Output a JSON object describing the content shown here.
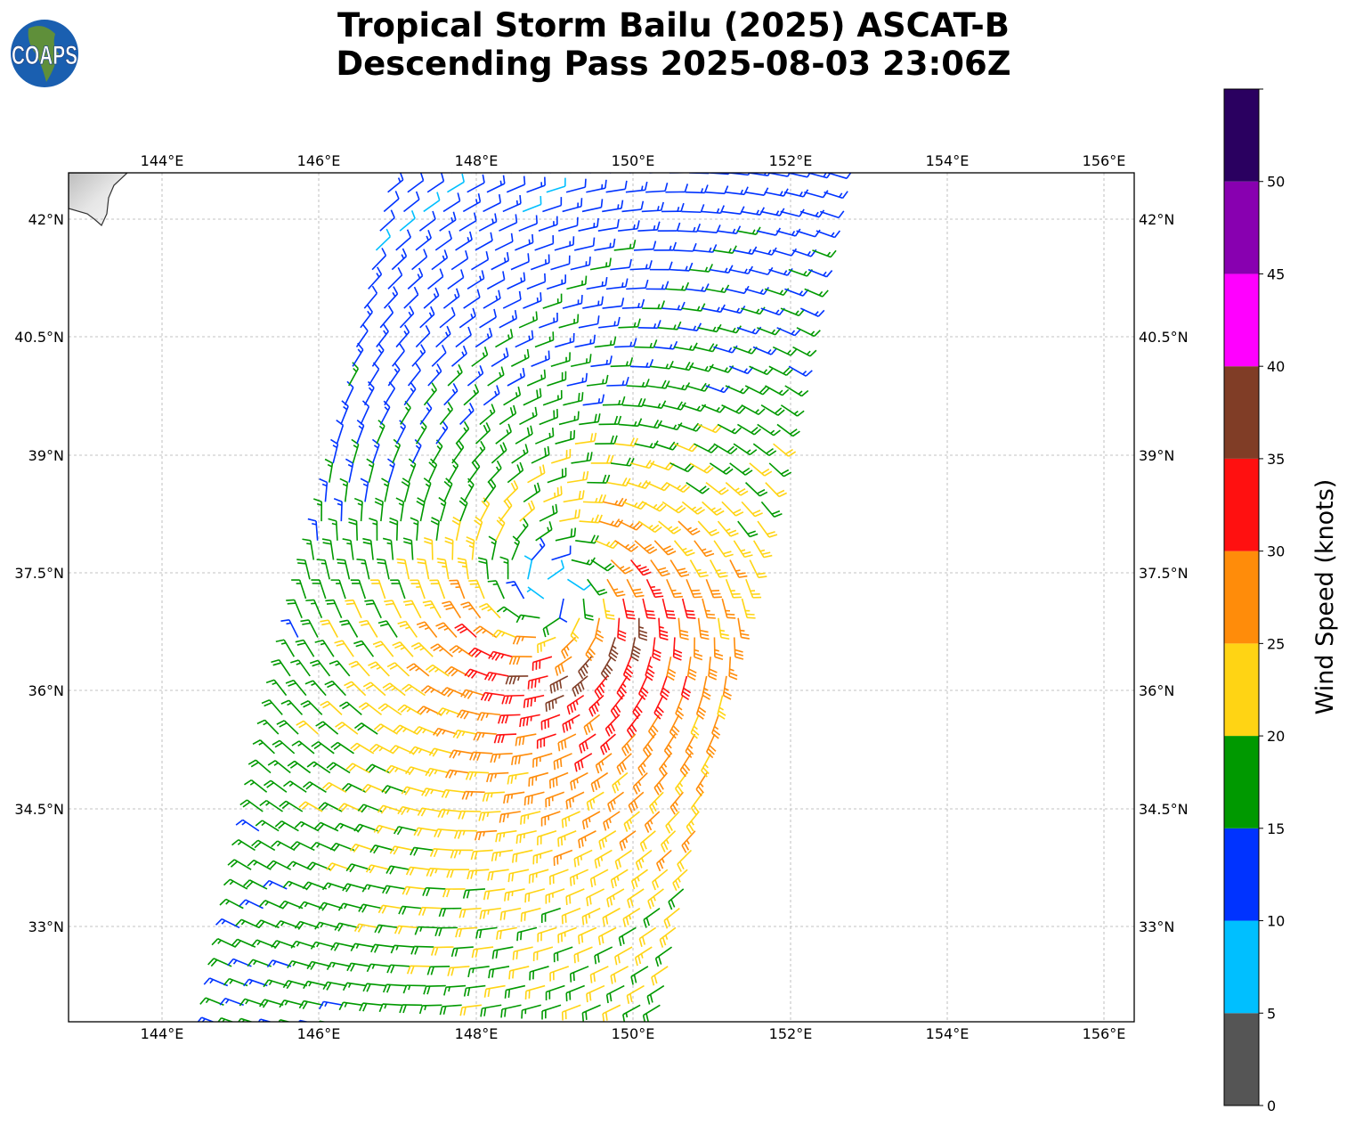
{
  "title": {
    "line1": "Tropical Storm Bailu (2025) ASCAT-B",
    "line2": "Descending Pass 2025-08-03 23:06Z"
  },
  "logo": {
    "text": "COAPS"
  },
  "map": {
    "lon_ticks": [
      "144°E",
      "146°E",
      "148°E",
      "150°E",
      "152°E",
      "154°E",
      "156°E"
    ],
    "lat_ticks": [
      "42°N",
      "40.5°N",
      "39°N",
      "37.5°N",
      "36°N",
      "34.5°N",
      "33°N"
    ],
    "gridlines": true,
    "extent": {
      "lon": [
        142.8,
        156.4
      ],
      "lat": [
        31.8,
        42.6
      ]
    }
  },
  "colorbar": {
    "label": "Wind Speed (knots)",
    "ticks": [
      "0",
      "5",
      "10",
      "15",
      "20",
      "25",
      "30",
      "35",
      "40",
      "45",
      "50"
    ],
    "bins": [
      0,
      5,
      10,
      15,
      20,
      25,
      30,
      35,
      40,
      45,
      50,
      55
    ],
    "colors": [
      "#555555",
      "#00bfff",
      "#0033ff",
      "#009900",
      "#ffd414",
      "#ff8c0a",
      "#ff1010",
      "#803d26",
      "#ff00ff",
      "#8800b0",
      "#2a0060"
    ]
  }
}
